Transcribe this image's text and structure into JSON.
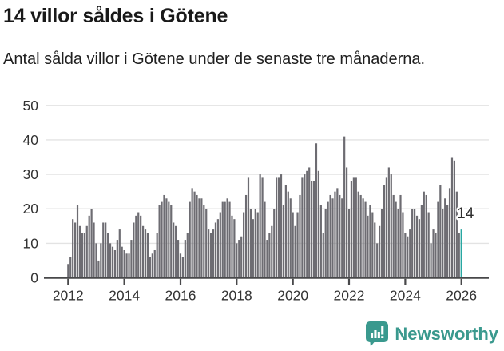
{
  "header": {
    "title": "14 villor såldes i Götene",
    "subtitle": "Antal sålda villor i Götene under de senaste tre månaderna."
  },
  "chart_data": {
    "type": "bar",
    "title": "14 villor såldes i Götene",
    "subtitle": "Antal sålda villor i Götene under de senaste tre månaderna.",
    "unit": "antal sålda villor (rullande tre månader)",
    "frequency": "monthly",
    "x_start": "2012-01",
    "values": [
      4,
      6,
      17,
      16,
      21,
      15,
      13,
      13,
      15,
      18,
      20,
      16,
      10,
      5,
      10,
      16,
      16,
      13,
      10,
      9,
      8,
      11,
      14,
      9,
      8,
      7,
      7,
      11,
      16,
      18,
      19,
      18,
      15,
      14,
      13,
      6,
      7,
      8,
      13,
      21,
      22,
      24,
      23,
      22,
      21,
      16,
      15,
      11,
      7,
      6,
      11,
      13,
      22,
      26,
      25,
      24,
      23,
      23,
      21,
      20,
      14,
      13,
      14,
      16,
      17,
      19,
      22,
      22,
      23,
      22,
      18,
      17,
      10,
      11,
      12,
      19,
      24,
      29,
      20,
      17,
      20,
      19,
      30,
      29,
      22,
      11,
      13,
      15,
      20,
      29,
      29,
      30,
      21,
      27,
      25,
      23,
      19,
      15,
      19,
      24,
      29,
      30,
      31,
      32,
      28,
      28,
      39,
      31,
      21,
      13,
      20,
      22,
      24,
      23,
      25,
      26,
      24,
      23,
      41,
      32,
      20,
      28,
      29,
      29,
      25,
      24,
      23,
      22,
      18,
      21,
      19,
      16,
      10,
      15,
      20,
      27,
      29,
      32,
      30,
      24,
      22,
      20,
      24,
      19,
      13,
      12,
      14,
      20,
      20,
      18,
      17,
      21,
      25,
      24,
      19,
      10,
      14,
      13,
      22,
      27,
      20,
      23,
      21,
      26,
      35,
      34,
      25,
      13
    ],
    "highlight": {
      "label": "14",
      "value": 14,
      "color": "#29a7a2",
      "period": "2026"
    },
    "ylim": [
      0,
      50
    ],
    "yticks": [
      0,
      10,
      20,
      30,
      40,
      50
    ],
    "xticks": [
      2012,
      2014,
      2016,
      2018,
      2020,
      2022,
      2024,
      2026
    ],
    "grid": true,
    "legend": "none",
    "bar_color": "#6d6c72",
    "grid_color": "#e3e3e3",
    "axis_color": "#48484a",
    "label_color": "#333333"
  },
  "footer": {
    "brand": "Newsworthy",
    "brand_color": "#3a998e",
    "logo_icon": "newsworthy-bubble-barchart-icon"
  }
}
